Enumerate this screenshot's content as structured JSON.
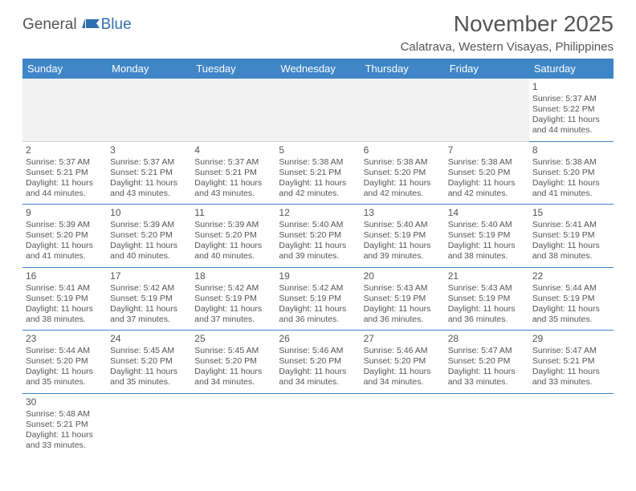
{
  "logo": {
    "part1": "General",
    "part2": "Blue"
  },
  "title": "November 2025",
  "location": "Calatrava, Western Visayas, Philippines",
  "header_bg": "#3f86c7",
  "days": [
    "Sunday",
    "Monday",
    "Tuesday",
    "Wednesday",
    "Thursday",
    "Friday",
    "Saturday"
  ],
  "weeks": [
    [
      null,
      null,
      null,
      null,
      null,
      null,
      {
        "n": "1",
        "sr": "5:37 AM",
        "ss": "5:22 PM",
        "dl": "11 hours and 44 minutes."
      }
    ],
    [
      {
        "n": "2",
        "sr": "5:37 AM",
        "ss": "5:21 PM",
        "dl": "11 hours and 44 minutes."
      },
      {
        "n": "3",
        "sr": "5:37 AM",
        "ss": "5:21 PM",
        "dl": "11 hours and 43 minutes."
      },
      {
        "n": "4",
        "sr": "5:37 AM",
        "ss": "5:21 PM",
        "dl": "11 hours and 43 minutes."
      },
      {
        "n": "5",
        "sr": "5:38 AM",
        "ss": "5:21 PM",
        "dl": "11 hours and 42 minutes."
      },
      {
        "n": "6",
        "sr": "5:38 AM",
        "ss": "5:20 PM",
        "dl": "11 hours and 42 minutes."
      },
      {
        "n": "7",
        "sr": "5:38 AM",
        "ss": "5:20 PM",
        "dl": "11 hours and 42 minutes."
      },
      {
        "n": "8",
        "sr": "5:38 AM",
        "ss": "5:20 PM",
        "dl": "11 hours and 41 minutes."
      }
    ],
    [
      {
        "n": "9",
        "sr": "5:39 AM",
        "ss": "5:20 PM",
        "dl": "11 hours and 41 minutes."
      },
      {
        "n": "10",
        "sr": "5:39 AM",
        "ss": "5:20 PM",
        "dl": "11 hours and 40 minutes."
      },
      {
        "n": "11",
        "sr": "5:39 AM",
        "ss": "5:20 PM",
        "dl": "11 hours and 40 minutes."
      },
      {
        "n": "12",
        "sr": "5:40 AM",
        "ss": "5:20 PM",
        "dl": "11 hours and 39 minutes."
      },
      {
        "n": "13",
        "sr": "5:40 AM",
        "ss": "5:19 PM",
        "dl": "11 hours and 39 minutes."
      },
      {
        "n": "14",
        "sr": "5:40 AM",
        "ss": "5:19 PM",
        "dl": "11 hours and 38 minutes."
      },
      {
        "n": "15",
        "sr": "5:41 AM",
        "ss": "5:19 PM",
        "dl": "11 hours and 38 minutes."
      }
    ],
    [
      {
        "n": "16",
        "sr": "5:41 AM",
        "ss": "5:19 PM",
        "dl": "11 hours and 38 minutes."
      },
      {
        "n": "17",
        "sr": "5:42 AM",
        "ss": "5:19 PM",
        "dl": "11 hours and 37 minutes."
      },
      {
        "n": "18",
        "sr": "5:42 AM",
        "ss": "5:19 PM",
        "dl": "11 hours and 37 minutes."
      },
      {
        "n": "19",
        "sr": "5:42 AM",
        "ss": "5:19 PM",
        "dl": "11 hours and 36 minutes."
      },
      {
        "n": "20",
        "sr": "5:43 AM",
        "ss": "5:19 PM",
        "dl": "11 hours and 36 minutes."
      },
      {
        "n": "21",
        "sr": "5:43 AM",
        "ss": "5:19 PM",
        "dl": "11 hours and 36 minutes."
      },
      {
        "n": "22",
        "sr": "5:44 AM",
        "ss": "5:19 PM",
        "dl": "11 hours and 35 minutes."
      }
    ],
    [
      {
        "n": "23",
        "sr": "5:44 AM",
        "ss": "5:20 PM",
        "dl": "11 hours and 35 minutes."
      },
      {
        "n": "24",
        "sr": "5:45 AM",
        "ss": "5:20 PM",
        "dl": "11 hours and 35 minutes."
      },
      {
        "n": "25",
        "sr": "5:45 AM",
        "ss": "5:20 PM",
        "dl": "11 hours and 34 minutes."
      },
      {
        "n": "26",
        "sr": "5:46 AM",
        "ss": "5:20 PM",
        "dl": "11 hours and 34 minutes."
      },
      {
        "n": "27",
        "sr": "5:46 AM",
        "ss": "5:20 PM",
        "dl": "11 hours and 34 minutes."
      },
      {
        "n": "28",
        "sr": "5:47 AM",
        "ss": "5:20 PM",
        "dl": "11 hours and 33 minutes."
      },
      {
        "n": "29",
        "sr": "5:47 AM",
        "ss": "5:21 PM",
        "dl": "11 hours and 33 minutes."
      }
    ],
    [
      {
        "n": "30",
        "sr": "5:48 AM",
        "ss": "5:21 PM",
        "dl": "11 hours and 33 minutes."
      },
      null,
      null,
      null,
      null,
      null,
      null
    ]
  ],
  "labels": {
    "sunrise": "Sunrise: ",
    "sunset": "Sunset: ",
    "daylight": "Daylight: "
  }
}
